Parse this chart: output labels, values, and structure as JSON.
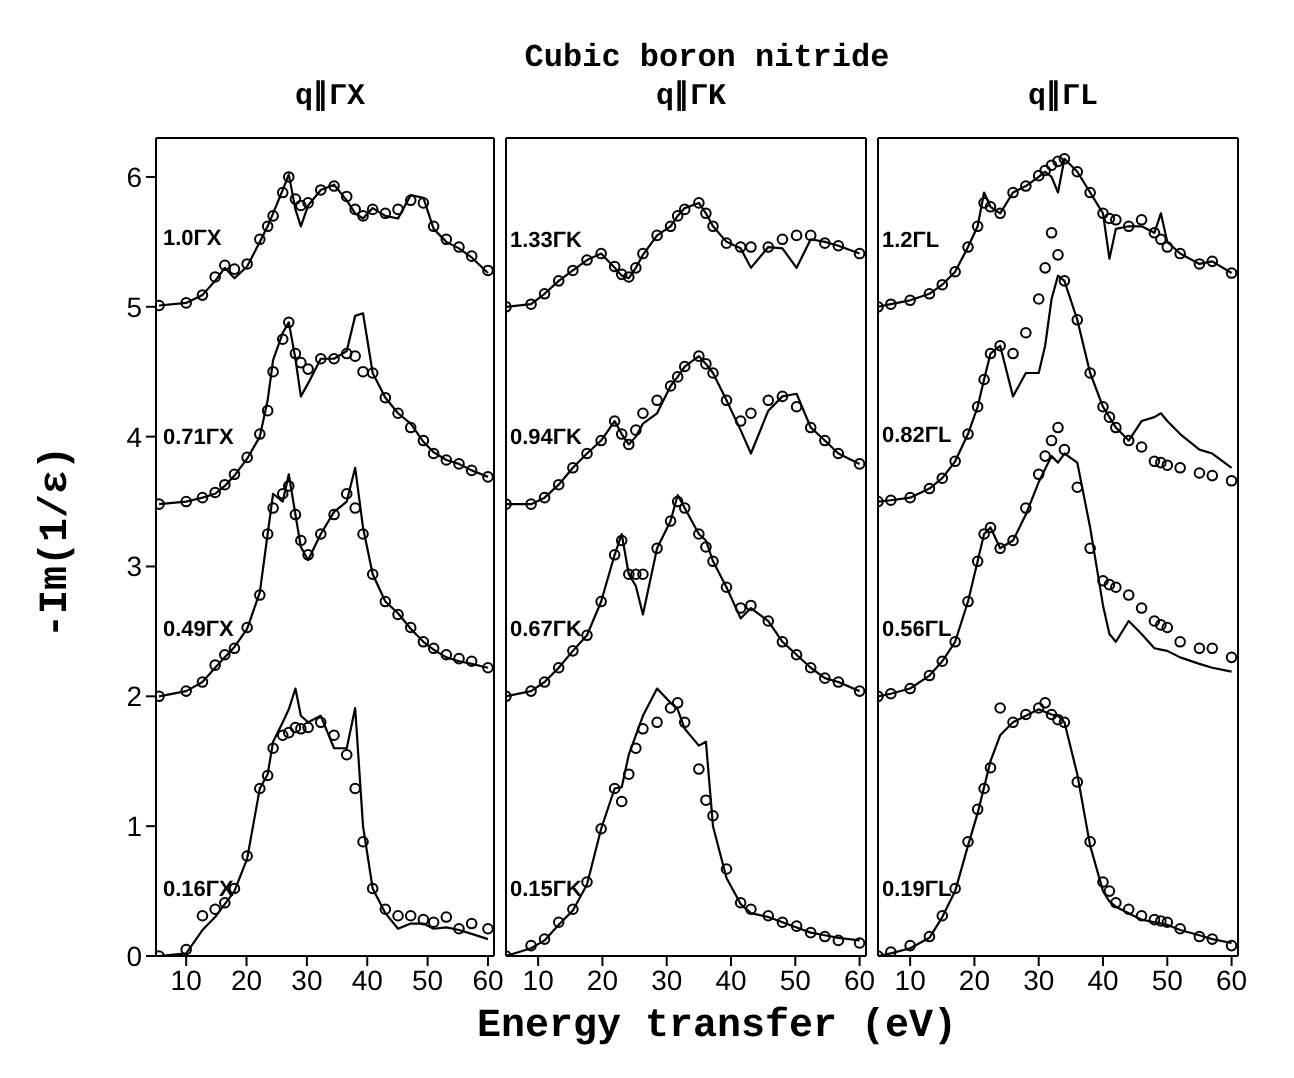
{
  "chart_data": [
    {
      "type": "line",
      "title": "q∥ΓX",
      "ylabel": "-Im(1/ε)",
      "annotations": [
        "Cubic boron nitride"
      ],
      "xlim": [
        5,
        61
      ],
      "xticks": [
        10,
        20,
        30,
        40,
        50,
        60
      ],
      "ylim": [
        0,
        6.3
      ],
      "yticks": [
        0,
        1,
        2,
        3,
        4,
        5,
        6
      ],
      "series": [
        {
          "type": "scatter",
          "marker": "circle",
          "color": "#000000",
          "x": [
            5.5,
            10,
            12.7,
            14.8,
            16.4,
            18,
            20.1,
            22.2,
            23.5,
            24.4,
            26,
            27,
            28.1,
            29,
            30.2,
            32.3,
            34.5,
            36.6,
            38,
            39.3,
            40.9,
            43,
            45.1,
            47.2,
            49.3,
            51,
            53.1,
            55.2,
            57.3,
            60
          ],
          "values": [
            5.01,
            5.03,
            5.09,
            5.23,
            5.32,
            5.29,
            5.33,
            5.52,
            5.62,
            5.7,
            5.88,
            6.0,
            5.83,
            5.78,
            5.8,
            5.9,
            5.93,
            5.85,
            5.75,
            5.7,
            5.75,
            5.72,
            5.75,
            5.82,
            5.8,
            5.62,
            5.52,
            5.46,
            5.39,
            5.28
          ]
        },
        {
          "name": "1.0ΓX",
          "color": "#000000",
          "x": [
            5.5,
            10,
            12.7,
            14.8,
            16.4,
            18,
            20.1,
            22.2,
            23.5,
            24.4,
            26,
            27,
            28.1,
            29,
            30.2,
            32.3,
            34.5,
            36.6,
            38,
            39.3,
            40.9,
            43,
            45.1,
            47.2,
            49.3,
            51,
            53.1,
            55.2,
            57.3,
            60
          ],
          "values": [
            5.01,
            5.03,
            5.09,
            5.2,
            5.3,
            5.22,
            5.31,
            5.5,
            5.62,
            5.72,
            5.9,
            6.02,
            5.75,
            5.62,
            5.78,
            5.9,
            5.94,
            5.82,
            5.72,
            5.68,
            5.76,
            5.7,
            5.68,
            5.86,
            5.84,
            5.6,
            5.5,
            5.45,
            5.38,
            5.26
          ]
        },
        {
          "type": "scatter",
          "marker": "circle",
          "color": "#000000",
          "x": [
            5.5,
            10,
            12.7,
            14.8,
            16.4,
            18,
            20.1,
            22.2,
            23.5,
            24.4,
            26,
            27,
            28.1,
            29,
            30.2,
            32.3,
            34.5,
            36.6,
            38,
            39.3,
            40.9,
            43,
            45.1,
            47.2,
            49.3,
            51,
            53.1,
            55.2,
            57.3,
            60
          ],
          "values": [
            3.48,
            3.5,
            3.53,
            3.57,
            3.63,
            3.71,
            3.84,
            4.02,
            4.2,
            4.5,
            4.75,
            4.88,
            4.64,
            4.57,
            4.52,
            4.6,
            4.6,
            4.64,
            4.62,
            4.5,
            4.49,
            4.3,
            4.18,
            4.07,
            3.97,
            3.87,
            3.82,
            3.79,
            3.74,
            3.69
          ]
        },
        {
          "name": "0.71ΓX",
          "color": "#000000",
          "x": [
            5.5,
            10,
            12.7,
            14.8,
            16.4,
            18,
            20.1,
            22.2,
            23.5,
            24.4,
            26,
            27,
            28.1,
            29,
            30.2,
            32.3,
            34.5,
            36.6,
            38,
            39.3,
            40.9,
            43,
            45.1,
            47.2,
            49.3,
            51,
            53.1,
            55.2,
            57.3,
            60
          ],
          "values": [
            3.48,
            3.5,
            3.53,
            3.56,
            3.62,
            3.7,
            3.83,
            4.0,
            4.28,
            4.59,
            4.8,
            4.88,
            4.6,
            4.31,
            4.41,
            4.6,
            4.6,
            4.66,
            4.93,
            4.95,
            4.49,
            4.3,
            4.18,
            4.1,
            3.96,
            3.88,
            3.82,
            3.79,
            3.74,
            3.69
          ]
        },
        {
          "type": "scatter",
          "marker": "circle",
          "color": "#000000",
          "x": [
            5.5,
            10,
            12.7,
            14.8,
            16.4,
            18,
            20.1,
            22.2,
            23.5,
            24.4,
            26,
            27,
            28.1,
            29,
            30.2,
            32.3,
            34.5,
            36.6,
            38,
            39.3,
            40.9,
            43,
            45.1,
            47.2,
            49.3,
            51,
            53.1,
            55.2,
            57.3,
            60
          ],
          "values": [
            2.0,
            2.04,
            2.11,
            2.24,
            2.32,
            2.37,
            2.53,
            2.78,
            3.25,
            3.45,
            3.56,
            3.62,
            3.4,
            3.2,
            3.09,
            3.25,
            3.4,
            3.56,
            3.45,
            3.25,
            2.94,
            2.73,
            2.63,
            2.53,
            2.42,
            2.37,
            2.32,
            2.29,
            2.27,
            2.22
          ]
        },
        {
          "name": "0.49ΓX",
          "color": "#000000",
          "x": [
            5.5,
            10,
            12.7,
            14.8,
            16.4,
            18,
            20.1,
            22.2,
            23.5,
            24.4,
            26,
            27,
            28.1,
            29,
            30.2,
            32.3,
            34.5,
            36.6,
            38,
            39.3,
            40.9,
            43,
            45.1,
            47.2,
            49.3,
            51,
            53.1,
            55.2,
            57.3,
            60
          ],
          "values": [
            2.0,
            2.04,
            2.11,
            2.22,
            2.3,
            2.38,
            2.52,
            2.8,
            3.25,
            3.56,
            3.5,
            3.71,
            3.4,
            3.15,
            3.05,
            3.25,
            3.42,
            3.5,
            3.76,
            3.3,
            2.94,
            2.73,
            2.64,
            2.52,
            2.42,
            2.36,
            2.3,
            2.27,
            2.25,
            2.22
          ]
        },
        {
          "type": "scatter",
          "marker": "circle",
          "color": "#000000",
          "x": [
            5.5,
            10,
            12.7,
            14.8,
            16.4,
            18,
            20.1,
            22.2,
            23.5,
            24.4,
            26,
            27,
            28.1,
            29,
            30.2,
            32.3,
            34.5,
            36.6,
            38,
            39.3,
            40.9,
            43,
            45.1,
            47.2,
            49.3,
            51,
            53.1,
            55.2,
            57.3,
            60
          ],
          "values": [
            0.0,
            0.05,
            0.31,
            0.36,
            0.41,
            0.52,
            0.77,
            1.29,
            1.39,
            1.6,
            1.7,
            1.72,
            1.76,
            1.75,
            1.76,
            1.8,
            1.7,
            1.55,
            1.29,
            0.88,
            0.52,
            0.36,
            0.31,
            0.31,
            0.28,
            0.26,
            0.3,
            0.21,
            0.25,
            0.21
          ]
        },
        {
          "name": "0.16ΓX",
          "color": "#000000",
          "x": [
            5.5,
            10,
            12.7,
            14.8,
            16.4,
            18,
            20.1,
            22.2,
            23.5,
            24.4,
            26,
            27,
            28.1,
            29,
            30.2,
            32.3,
            34.5,
            36.6,
            38,
            39.3,
            40.9,
            43,
            45.1,
            47.2,
            49.3,
            51,
            53.1,
            55.2,
            57.3,
            60
          ],
          "values": [
            0.0,
            0.02,
            0.2,
            0.3,
            0.4,
            0.5,
            0.75,
            1.29,
            1.4,
            1.65,
            1.8,
            1.9,
            2.06,
            1.85,
            1.8,
            1.85,
            1.6,
            1.6,
            1.91,
            1.0,
            0.52,
            0.33,
            0.21,
            0.25,
            0.25,
            0.21,
            0.22,
            0.2,
            0.17,
            0.13
          ]
        }
      ]
    },
    {
      "type": "line",
      "title": "q∥ΓK",
      "xlabel": "Energy transfer (eV)",
      "tick_labels": "x",
      "xlim": [
        5,
        61
      ],
      "xticks": [
        10,
        20,
        30,
        40,
        50,
        60
      ],
      "ylim": [
        0,
        6.3
      ],
      "yticks": [
        0,
        1,
        2,
        3,
        4,
        5,
        6
      ],
      "series": [
        {
          "type": "scatter",
          "marker": "circle",
          "color": "#000000",
          "x": [
            5,
            8.9,
            11,
            13.2,
            15.4,
            17.6,
            19.8,
            21.9,
            23,
            24.1,
            25.2,
            26.3,
            28.5,
            30.6,
            31.7,
            32.8,
            35,
            36.1,
            37.2,
            39.3,
            41.5,
            43.1,
            45.8,
            48,
            50.2,
            52.4,
            54.6,
            56.7,
            60
          ],
          "values": [
            5.0,
            5.02,
            5.1,
            5.2,
            5.28,
            5.36,
            5.41,
            5.31,
            5.25,
            5.23,
            5.3,
            5.41,
            5.55,
            5.62,
            5.7,
            5.75,
            5.8,
            5.72,
            5.62,
            5.49,
            5.46,
            5.46,
            5.46,
            5.52,
            5.55,
            5.55,
            5.49,
            5.47,
            5.41
          ]
        },
        {
          "name": "1.33ΓK",
          "color": "#000000",
          "x": [
            5,
            8.9,
            11,
            13.2,
            15.4,
            17.6,
            19.8,
            21.9,
            23,
            24.1,
            25.2,
            26.3,
            28.5,
            30.6,
            31.7,
            32.8,
            35,
            36.1,
            37.2,
            39.3,
            41.5,
            43.1,
            45.8,
            48,
            50.2,
            52.4,
            54.6,
            56.7,
            60
          ],
          "values": [
            5.0,
            5.02,
            5.1,
            5.2,
            5.28,
            5.36,
            5.41,
            5.3,
            5.24,
            5.22,
            5.3,
            5.4,
            5.55,
            5.62,
            5.7,
            5.76,
            5.8,
            5.72,
            5.62,
            5.5,
            5.45,
            5.3,
            5.46,
            5.45,
            5.3,
            5.52,
            5.5,
            5.47,
            5.41
          ]
        },
        {
          "type": "scatter",
          "marker": "circle",
          "color": "#000000",
          "x": [
            5,
            8.9,
            11,
            13.2,
            15.4,
            17.6,
            19.8,
            21.9,
            23,
            24.1,
            25.2,
            26.3,
            28.5,
            30.6,
            31.7,
            32.8,
            35,
            36.1,
            37.2,
            39.3,
            41.5,
            43.1,
            45.8,
            48,
            50.2,
            52.4,
            54.6,
            56.7,
            60
          ],
          "values": [
            3.48,
            3.48,
            3.53,
            3.63,
            3.76,
            3.87,
            3.97,
            4.12,
            4.02,
            3.94,
            4.05,
            4.18,
            4.28,
            4.39,
            4.46,
            4.54,
            4.62,
            4.56,
            4.49,
            4.28,
            4.12,
            4.18,
            4.28,
            4.31,
            4.23,
            4.07,
            3.97,
            3.87,
            3.79
          ]
        },
        {
          "name": "0.94ΓK",
          "color": "#000000",
          "x": [
            5,
            8.9,
            11,
            13.2,
            15.4,
            17.6,
            19.8,
            21.9,
            23,
            24.1,
            25.2,
            26.3,
            28.5,
            30.6,
            31.7,
            32.8,
            35,
            36.1,
            37.2,
            39.3,
            41.5,
            43.1,
            45.8,
            48,
            50.2,
            52.4,
            54.6,
            56.7,
            60
          ],
          "values": [
            3.48,
            3.48,
            3.53,
            3.63,
            3.76,
            3.87,
            3.97,
            4.12,
            4.02,
            3.94,
            4.0,
            4.1,
            4.18,
            4.39,
            4.46,
            4.54,
            4.62,
            4.56,
            4.49,
            4.28,
            4.05,
            3.87,
            4.2,
            4.31,
            4.33,
            4.07,
            3.97,
            3.87,
            3.79
          ]
        },
        {
          "type": "scatter",
          "marker": "circle",
          "color": "#000000",
          "x": [
            5,
            8.9,
            11,
            13.2,
            15.4,
            17.6,
            19.8,
            21.9,
            23,
            24.1,
            25.2,
            26.3,
            28.5,
            30.6,
            31.7,
            32.8,
            35,
            36.1,
            37.2,
            39.3,
            41.5,
            43.1,
            45.8,
            48,
            50.2,
            52.4,
            54.6,
            56.7,
            60
          ],
          "values": [
            2.0,
            2.04,
            2.11,
            2.22,
            2.35,
            2.47,
            2.73,
            3.09,
            3.2,
            2.94,
            2.94,
            2.94,
            3.14,
            3.35,
            3.5,
            3.45,
            3.25,
            3.15,
            3.04,
            2.84,
            2.68,
            2.7,
            2.58,
            2.42,
            2.32,
            2.22,
            2.14,
            2.11,
            2.04
          ]
        },
        {
          "name": "0.67ΓK",
          "color": "#000000",
          "x": [
            5,
            8.9,
            11,
            13.2,
            15.4,
            17.6,
            19.8,
            21.9,
            23,
            24.1,
            25.2,
            26.3,
            28.5,
            30.6,
            31.7,
            32.8,
            35,
            36.1,
            37.2,
            39.3,
            41.5,
            43.1,
            45.8,
            48,
            50.2,
            52.4,
            54.6,
            56.7,
            60
          ],
          "values": [
            2.0,
            2.04,
            2.11,
            2.22,
            2.35,
            2.47,
            2.73,
            3.09,
            3.25,
            2.94,
            2.85,
            2.63,
            3.14,
            3.35,
            3.55,
            3.45,
            3.25,
            3.2,
            3.04,
            2.84,
            2.6,
            2.68,
            2.58,
            2.42,
            2.32,
            2.22,
            2.14,
            2.11,
            2.04
          ]
        },
        {
          "type": "scatter",
          "marker": "circle",
          "color": "#000000",
          "x": [
            5,
            8.9,
            11,
            13.2,
            15.4,
            17.6,
            19.8,
            21.9,
            23,
            24.1,
            25.2,
            26.3,
            28.5,
            30.6,
            31.7,
            32.8,
            35,
            36.1,
            37.2,
            39.3,
            41.5,
            43.1,
            45.8,
            48,
            50.2,
            52.4,
            54.6,
            56.7,
            60
          ],
          "values": [
            0.0,
            0.08,
            0.13,
            0.26,
            0.36,
            0.57,
            0.98,
            1.29,
            1.19,
            1.4,
            1.6,
            1.75,
            1.8,
            1.91,
            1.95,
            1.8,
            1.44,
            1.2,
            1.08,
            0.67,
            0.41,
            0.36,
            0.31,
            0.26,
            0.23,
            0.18,
            0.15,
            0.12,
            0.1
          ]
        },
        {
          "name": "0.15ΓK",
          "color": "#000000",
          "x": [
            5,
            8.9,
            11,
            13.2,
            15.4,
            17.6,
            19.8,
            21.9,
            23,
            24.1,
            25.2,
            26.3,
            28.5,
            30.6,
            31.7,
            32.8,
            35,
            36.1,
            37.2,
            39.3,
            41.5,
            43.1,
            45.8,
            48,
            50.2,
            52.4,
            54.6,
            56.7,
            60
          ],
          "values": [
            0.0,
            0.06,
            0.12,
            0.24,
            0.35,
            0.55,
            0.98,
            1.29,
            1.3,
            1.55,
            1.7,
            1.85,
            2.06,
            1.95,
            1.9,
            1.75,
            1.62,
            1.65,
            1.0,
            0.6,
            0.4,
            0.33,
            0.3,
            0.26,
            0.22,
            0.18,
            0.16,
            0.14,
            0.12
          ]
        }
      ]
    },
    {
      "type": "line",
      "title": "q∥ΓL",
      "tick_labels": "x",
      "xlim": [
        5,
        61
      ],
      "xticks": [
        10,
        20,
        30,
        40,
        50,
        60
      ],
      "ylim": [
        0,
        6.3
      ],
      "yticks": [
        0,
        1,
        2,
        3,
        4,
        5,
        6
      ],
      "series": [
        {
          "type": "scatter",
          "marker": "circle",
          "color": "#000000",
          "x": [
            5,
            7,
            10,
            13,
            15,
            17,
            19,
            20.5,
            21.5,
            22.5,
            24,
            26,
            28,
            30,
            31,
            32,
            33,
            34,
            36,
            38,
            40,
            41,
            42,
            44,
            46,
            48,
            49,
            50,
            52,
            55,
            57,
            60
          ],
          "values": [
            5.0,
            5.02,
            5.05,
            5.1,
            5.17,
            5.27,
            5.46,
            5.62,
            5.8,
            5.77,
            5.72,
            5.88,
            5.93,
            6.01,
            6.05,
            6.09,
            6.12,
            6.14,
            6.04,
            5.88,
            5.72,
            5.68,
            5.67,
            5.62,
            5.67,
            5.57,
            5.52,
            5.46,
            5.41,
            5.33,
            5.35,
            5.26
          ]
        },
        {
          "name": "1.2ΓL",
          "color": "#000000",
          "x": [
            5,
            7,
            10,
            13,
            15,
            17,
            19,
            20.5,
            21.5,
            22.5,
            24,
            26,
            28,
            30,
            31,
            32,
            33,
            34,
            36,
            38,
            40,
            41,
            42,
            44,
            46,
            48,
            49,
            50,
            52,
            55,
            57,
            60
          ],
          "values": [
            5.0,
            5.02,
            5.05,
            5.1,
            5.17,
            5.27,
            5.46,
            5.62,
            5.88,
            5.77,
            5.72,
            5.88,
            5.93,
            6.0,
            6.04,
            6.0,
            5.88,
            6.14,
            6.04,
            5.88,
            5.72,
            5.37,
            5.6,
            5.62,
            5.62,
            5.57,
            5.72,
            5.5,
            5.41,
            5.33,
            5.35,
            5.26
          ]
        },
        {
          "type": "scatter",
          "marker": "circle",
          "color": "#000000",
          "x": [
            5,
            7,
            10,
            13,
            15,
            17,
            19,
            20.5,
            21.5,
            22.5,
            24,
            26,
            28,
            30,
            31,
            32,
            33,
            34,
            36,
            38,
            40,
            41,
            42,
            44,
            46,
            48,
            49,
            50,
            52,
            55,
            57,
            60
          ],
          "values": [
            3.5,
            3.51,
            3.53,
            3.6,
            3.68,
            3.81,
            4.02,
            4.23,
            4.44,
            4.64,
            4.7,
            4.64,
            4.8,
            5.06,
            5.3,
            5.57,
            5.4,
            5.2,
            4.9,
            4.49,
            4.23,
            4.15,
            4.07,
            3.97,
            3.92,
            3.81,
            3.8,
            3.78,
            3.76,
            3.72,
            3.7,
            3.66
          ]
        },
        {
          "name": "0.82ΓL",
          "color": "#000000",
          "x": [
            5,
            7,
            10,
            13,
            15,
            17,
            19,
            20.5,
            21.5,
            22.5,
            24,
            26,
            28,
            30,
            31,
            32,
            33,
            34,
            36,
            38,
            40,
            41,
            42,
            44,
            46,
            48,
            49,
            50,
            52,
            55,
            57,
            60
          ],
          "values": [
            3.5,
            3.51,
            3.53,
            3.6,
            3.68,
            3.81,
            4.02,
            4.23,
            4.44,
            4.64,
            4.7,
            4.31,
            4.49,
            4.49,
            4.7,
            5.06,
            5.24,
            5.2,
            4.9,
            4.49,
            4.23,
            4.15,
            4.07,
            3.97,
            4.12,
            4.15,
            4.18,
            4.12,
            4.02,
            3.9,
            3.87,
            3.76
          ]
        },
        {
          "type": "scatter",
          "marker": "circle",
          "color": "#000000",
          "x": [
            5,
            7,
            10,
            13,
            15,
            17,
            19,
            20.5,
            21.5,
            22.5,
            24,
            26,
            28,
            30,
            31,
            32,
            33,
            34,
            36,
            38,
            40,
            41,
            42,
            44,
            46,
            48,
            49,
            50,
            52,
            55,
            57,
            60
          ],
          "values": [
            2.0,
            2.02,
            2.06,
            2.16,
            2.27,
            2.42,
            2.73,
            3.04,
            3.25,
            3.3,
            3.14,
            3.2,
            3.45,
            3.71,
            3.85,
            3.97,
            4.07,
            3.9,
            3.61,
            3.14,
            2.89,
            2.86,
            2.84,
            2.78,
            2.68,
            2.58,
            2.55,
            2.53,
            2.42,
            2.37,
            2.37,
            2.3
          ]
        },
        {
          "name": "0.56ΓL",
          "color": "#000000",
          "x": [
            5,
            7,
            10,
            13,
            15,
            17,
            19,
            20.5,
            21.5,
            22.5,
            24,
            26,
            28,
            30,
            31,
            32,
            33,
            34,
            36,
            38,
            40,
            41,
            42,
            44,
            46,
            48,
            49,
            50,
            52,
            55,
            57,
            60
          ],
          "values": [
            2.0,
            2.02,
            2.06,
            2.16,
            2.27,
            2.42,
            2.73,
            3.04,
            3.25,
            3.3,
            3.14,
            3.2,
            3.4,
            3.65,
            3.75,
            3.85,
            3.8,
            3.87,
            3.8,
            3.3,
            2.7,
            2.48,
            2.42,
            2.58,
            2.48,
            2.37,
            2.36,
            2.35,
            2.3,
            2.25,
            2.22,
            2.19
          ]
        },
        {
          "type": "scatter",
          "marker": "circle",
          "color": "#000000",
          "x": [
            5,
            7,
            10,
            13,
            15,
            17,
            19,
            20.5,
            21.5,
            22.5,
            24,
            26,
            28,
            30,
            31,
            32,
            33,
            34,
            36,
            38,
            40,
            41,
            42,
            44,
            46,
            48,
            49,
            50,
            52,
            55,
            57,
            60
          ],
          "values": [
            0.0,
            0.03,
            0.08,
            0.15,
            0.31,
            0.52,
            0.88,
            1.13,
            1.29,
            1.45,
            1.91,
            1.8,
            1.86,
            1.91,
            1.95,
            1.86,
            1.82,
            1.8,
            1.34,
            0.88,
            0.57,
            0.5,
            0.41,
            0.36,
            0.31,
            0.28,
            0.27,
            0.26,
            0.21,
            0.15,
            0.13,
            0.08
          ]
        },
        {
          "name": "0.19ΓL",
          "color": "#000000",
          "x": [
            5,
            7,
            10,
            13,
            15,
            17,
            19,
            20.5,
            21.5,
            22.5,
            24,
            26,
            28,
            30,
            31,
            32,
            33,
            34,
            36,
            38,
            40,
            41,
            42,
            44,
            46,
            48,
            49,
            50,
            52,
            55,
            57,
            60
          ],
          "values": [
            0.0,
            0.02,
            0.06,
            0.14,
            0.3,
            0.5,
            0.85,
            1.1,
            1.3,
            1.5,
            1.7,
            1.8,
            1.85,
            1.9,
            1.88,
            1.86,
            1.85,
            1.8,
            1.4,
            0.85,
            0.5,
            0.42,
            0.38,
            0.33,
            0.28,
            0.26,
            0.25,
            0.24,
            0.2,
            0.16,
            0.13,
            0.1
          ]
        }
      ]
    }
  ]
}
